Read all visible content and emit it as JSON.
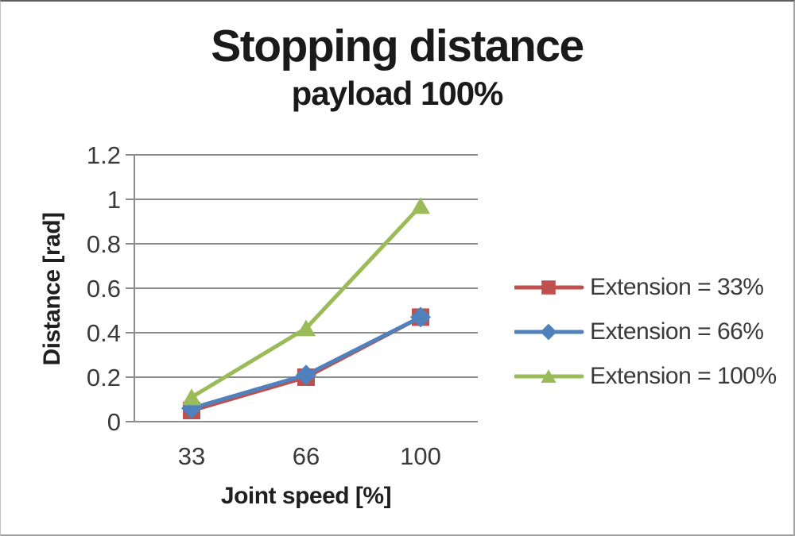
{
  "chart_data": {
    "type": "line",
    "title": "Stopping distance",
    "subtitle": "payload 100%",
    "xlabel": "Joint speed [%]",
    "ylabel": "Distance [rad]",
    "categories": [
      "33",
      "66",
      "100"
    ],
    "series": [
      {
        "name": "Extension = 33%",
        "marker": "square",
        "color": "#C0504D",
        "values": [
          0.05,
          0.2,
          0.47
        ]
      },
      {
        "name": "Extension = 66%",
        "marker": "diamond",
        "color": "#4F81BD",
        "values": [
          0.06,
          0.21,
          0.47
        ]
      },
      {
        "name": "Extension = 100%",
        "marker": "triangle",
        "color": "#9BBB59",
        "values": [
          0.11,
          0.42,
          0.97
        ]
      }
    ],
    "ylim": [
      0,
      1.2
    ],
    "ytick_step": 0.2,
    "yticks": [
      "0",
      "0.2",
      "0.4",
      "0.6",
      "0.8",
      "1",
      "1.2"
    ],
    "grid": true,
    "legend_position": "right",
    "colors": {
      "grid": "#8C8C8C",
      "tick_text": "#3A3A3A",
      "title_text": "#1A1A1A"
    }
  }
}
